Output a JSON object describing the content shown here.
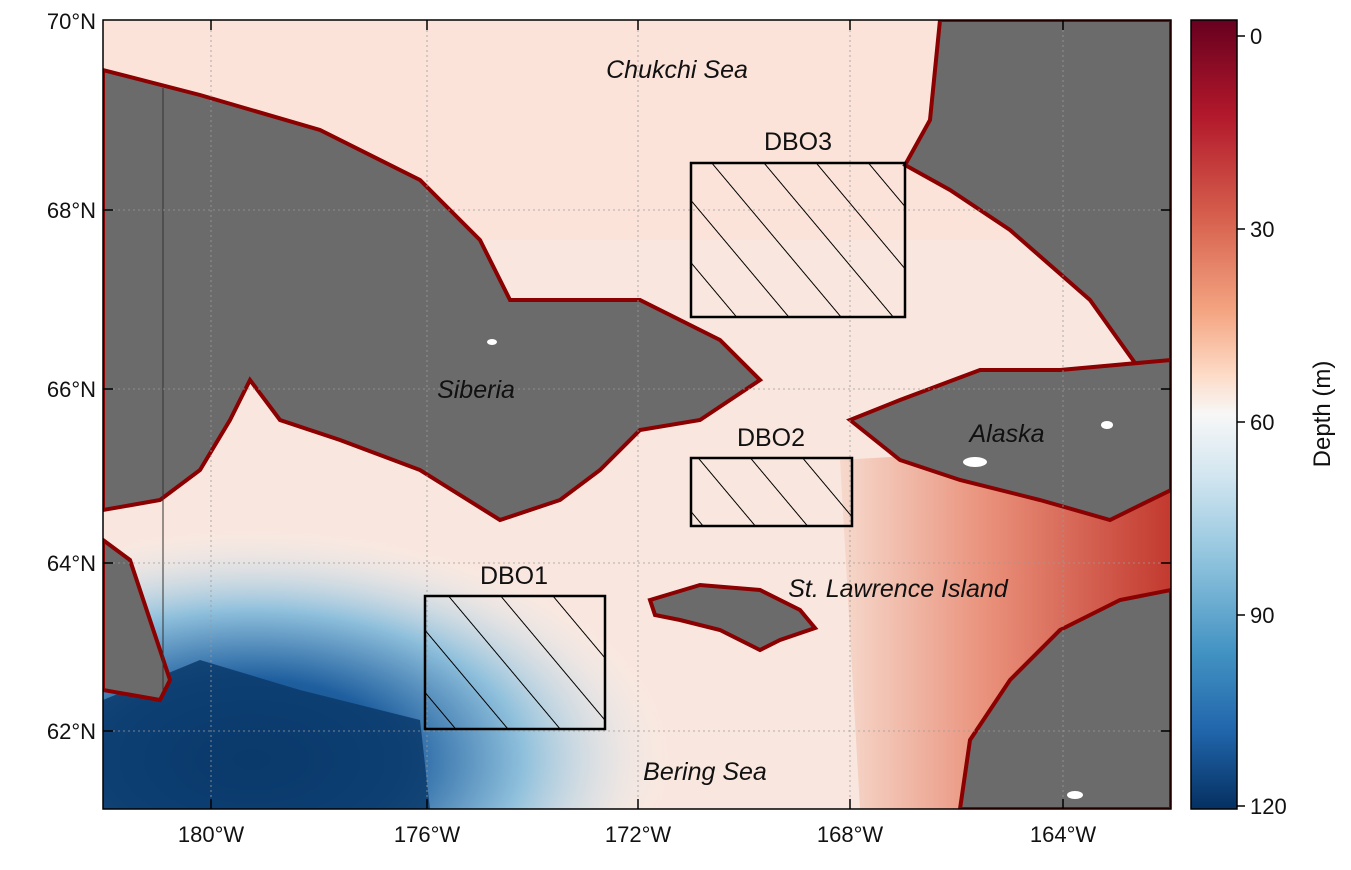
{
  "map": {
    "longitude_ticks": [
      "180°W",
      "176°W",
      "172°W",
      "168°W",
      "164°W"
    ],
    "latitude_ticks": [
      "70°N",
      "68°N",
      "66°N",
      "64°N",
      "62°N"
    ],
    "place_labels": {
      "chukchi": "Chukchi Sea",
      "siberia": "Siberia",
      "alaska": "Alaska",
      "st_lawrence": "St. Lawrence Island",
      "bering": "Bering Sea"
    },
    "regions": [
      {
        "name": "DBO3",
        "lon_range": [
          "171°W",
          "167°W"
        ],
        "lat_range": [
          "66.8°N",
          "68.5°N"
        ]
      },
      {
        "name": "DBO2",
        "lon_range": [
          "171°W",
          "168°W"
        ],
        "lat_range": [
          "64.4°N",
          "65.2°N"
        ]
      },
      {
        "name": "DBO1",
        "lon_range": [
          "176°W",
          "172.6°W"
        ],
        "lat_range": [
          "62°N",
          "63.6°N"
        ]
      }
    ]
  },
  "colorbar": {
    "title": "Depth (m)",
    "ticks": [
      "0",
      "30",
      "60",
      "90",
      "120"
    ],
    "range": [
      0,
      120
    ],
    "colormap": "RdBu (shallow = dark red, deep = dark blue)"
  },
  "colors": {
    "land": "#6b6b6b",
    "deep": "#0b3a6b",
    "shallow": "#a50f15",
    "mid": "#f7f4f2"
  }
}
